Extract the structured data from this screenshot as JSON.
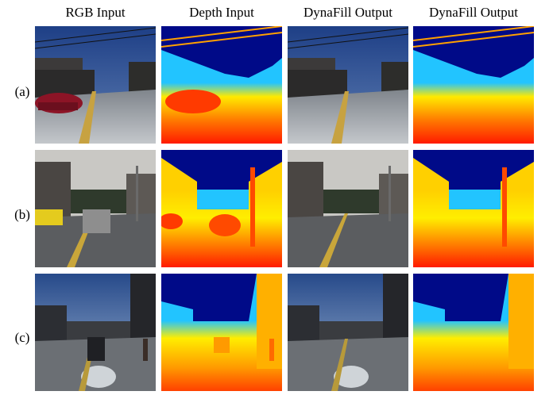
{
  "columns": {
    "rgb_input": "RGB Input",
    "depth_input": "Depth Input",
    "dynafill_rgb_output": "DynaFill Output",
    "dynafill_depth_output": "DynaFill Output"
  },
  "rows": [
    {
      "label": "(a)"
    },
    {
      "label": "(b)"
    },
    {
      "label": "(c)"
    }
  ],
  "colors": {
    "sky_depth": "#000a88",
    "near_depth": "#ff1a00",
    "mid_depth": "#ffd000",
    "far_depth": "#22c4ff"
  }
}
